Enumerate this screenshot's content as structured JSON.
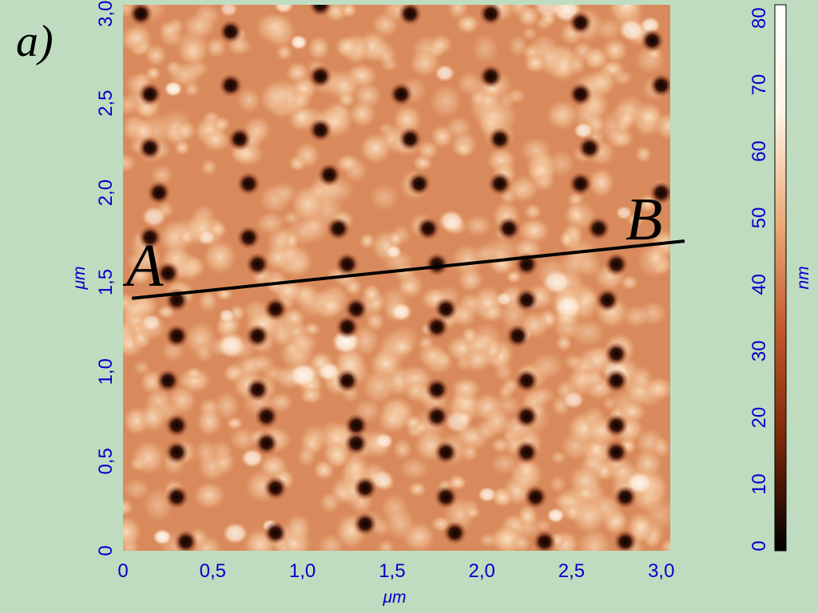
{
  "chart_data": {
    "type": "heatmap",
    "panel_label": "a)",
    "x_axis": {
      "unit": "μm",
      "range": [
        0,
        3.05
      ],
      "ticks": [
        0,
        0.5,
        1.0,
        1.5,
        2.0,
        2.5,
        3.0
      ],
      "tick_labels": [
        "0",
        "0,5",
        "1,0",
        "1,5",
        "2,0",
        "2,5",
        "3,0"
      ]
    },
    "y_axis": {
      "unit": "μm",
      "range": [
        0,
        3.05
      ],
      "ticks": [
        0,
        0.5,
        1.0,
        1.5,
        2.0,
        2.5,
        3.0
      ],
      "tick_labels": [
        "0",
        "0,5",
        "1,0",
        "1,5",
        "2,0",
        "2,5",
        "3,0"
      ]
    },
    "colorbar": {
      "unit": "nm",
      "range": [
        0,
        82
      ],
      "ticks": [
        0,
        10,
        20,
        30,
        40,
        50,
        60,
        70,
        80
      ],
      "tick_labels": [
        "0",
        "10",
        "20",
        "30",
        "40",
        "50",
        "60",
        "70",
        "80"
      ],
      "colors": [
        "#000000",
        "#7a2608",
        "#c2562a",
        "#ecaa78",
        "#fff3e3",
        "#ffffff"
      ]
    },
    "profile_line": {
      "start_label": "A",
      "end_label": "B",
      "start": [
        0.05,
        1.41
      ],
      "end": [
        3.13,
        1.73
      ],
      "color": "#000000"
    },
    "surface": {
      "background_height": 50,
      "pit_height": 2,
      "pits": [
        [
          0.1,
          3.0
        ],
        [
          0.6,
          2.9
        ],
        [
          1.1,
          3.05
        ],
        [
          1.6,
          3.0
        ],
        [
          2.05,
          3.0
        ],
        [
          2.55,
          2.95
        ],
        [
          2.95,
          2.85
        ],
        [
          0.15,
          2.55
        ],
        [
          0.6,
          2.6
        ],
        [
          1.1,
          2.65
        ],
        [
          1.55,
          2.55
        ],
        [
          2.05,
          2.65
        ],
        [
          2.55,
          2.55
        ],
        [
          3.0,
          2.6
        ],
        [
          0.15,
          2.25
        ],
        [
          0.65,
          2.3
        ],
        [
          1.1,
          2.35
        ],
        [
          1.6,
          2.3
        ],
        [
          2.1,
          2.3
        ],
        [
          2.6,
          2.25
        ],
        [
          0.2,
          2.0
        ],
        [
          0.7,
          2.05
        ],
        [
          1.15,
          2.1
        ],
        [
          1.65,
          2.05
        ],
        [
          2.1,
          2.05
        ],
        [
          2.55,
          2.05
        ],
        [
          3.0,
          2.0
        ],
        [
          0.15,
          1.75
        ],
        [
          0.7,
          1.75
        ],
        [
          1.2,
          1.8
        ],
        [
          1.7,
          1.8
        ],
        [
          2.15,
          1.8
        ],
        [
          2.65,
          1.8
        ],
        [
          0.25,
          1.55
        ],
        [
          0.75,
          1.6
        ],
        [
          1.25,
          1.6
        ],
        [
          1.75,
          1.6
        ],
        [
          2.25,
          1.6
        ],
        [
          2.75,
          1.6
        ],
        [
          0.3,
          1.4
        ],
        [
          0.85,
          1.35
        ],
        [
          1.3,
          1.35
        ],
        [
          1.8,
          1.35
        ],
        [
          2.25,
          1.4
        ],
        [
          2.7,
          1.4
        ],
        [
          0.3,
          1.2
        ],
        [
          0.75,
          1.2
        ],
        [
          1.25,
          1.25
        ],
        [
          1.75,
          1.25
        ],
        [
          2.2,
          1.2
        ],
        [
          2.75,
          1.1
        ],
        [
          0.25,
          0.95
        ],
        [
          0.75,
          0.9
        ],
        [
          1.25,
          0.95
        ],
        [
          1.75,
          0.9
        ],
        [
          2.25,
          0.95
        ],
        [
          2.75,
          0.95
        ],
        [
          0.3,
          0.7
        ],
        [
          0.8,
          0.75
        ],
        [
          1.3,
          0.7
        ],
        [
          1.75,
          0.75
        ],
        [
          2.25,
          0.75
        ],
        [
          2.75,
          0.7
        ],
        [
          0.3,
          0.55
        ],
        [
          0.8,
          0.6
        ],
        [
          1.3,
          0.6
        ],
        [
          1.8,
          0.55
        ],
        [
          2.25,
          0.55
        ],
        [
          2.75,
          0.55
        ],
        [
          0.3,
          0.3
        ],
        [
          0.85,
          0.35
        ],
        [
          1.35,
          0.35
        ],
        [
          1.8,
          0.3
        ],
        [
          2.3,
          0.3
        ],
        [
          2.8,
          0.3
        ],
        [
          0.35,
          0.05
        ],
        [
          0.85,
          0.1
        ],
        [
          1.35,
          0.15
        ],
        [
          1.85,
          0.1
        ],
        [
          2.35,
          0.05
        ],
        [
          2.8,
          0.05
        ]
      ]
    }
  }
}
